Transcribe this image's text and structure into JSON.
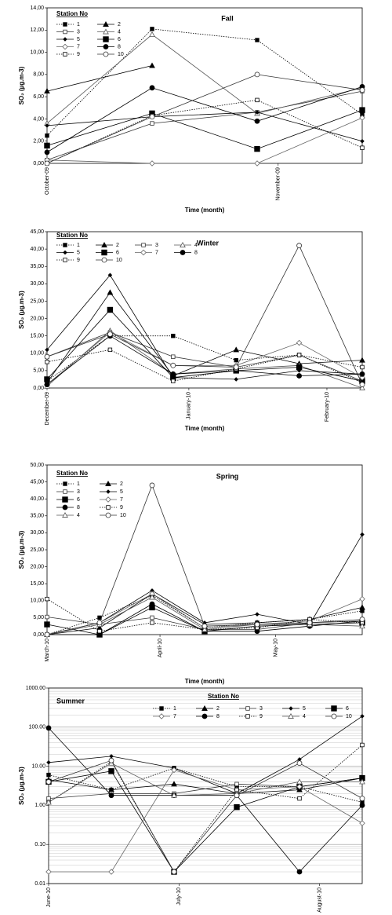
{
  "chart_data": [
    {
      "type": "line",
      "title": "Fall",
      "x_label": "Time (month)",
      "y_label": "SO₂ (µg.m-3)",
      "legend_title": "Station No",
      "x": [
        0,
        1,
        2,
        3
      ],
      "xlim": [
        0,
        3
      ],
      "xticks": [
        {
          "value": 0,
          "label": "October-09"
        },
        {
          "value": 2.2,
          "label": "November-09"
        }
      ],
      "ylim": [
        0,
        14
      ],
      "yticks": [
        {
          "value": 0,
          "label": "0,00"
        },
        {
          "value": 2,
          "label": "2,00"
        },
        {
          "value": 4,
          "label": "4,00"
        },
        {
          "value": 6,
          "label": "6,00"
        },
        {
          "value": 8,
          "label": "8,00"
        },
        {
          "value": 10,
          "label": "10,00"
        },
        {
          "value": 12,
          "label": "12,00"
        },
        {
          "value": 14,
          "label": "14,00"
        }
      ],
      "series": [
        {
          "name": "1",
          "color": "#000000",
          "marker": "square",
          "filled": true,
          "dashed": true,
          "values": [
            2.5,
            12.1,
            11.1,
            4.4
          ]
        },
        {
          "name": "2",
          "color": "#000000",
          "marker": "triangle",
          "filled": true,
          "dashed": false,
          "values": [
            6.5,
            8.8,
            null,
            null
          ]
        },
        {
          "name": "3",
          "color": "#333333",
          "marker": "square",
          "filled": false,
          "dashed": false,
          "values": [
            0.3,
            3.6,
            4.6,
            6.5
          ]
        },
        {
          "name": "4",
          "color": "#555555",
          "marker": "triangle",
          "filled": false,
          "dashed": false,
          "values": [
            3.6,
            11.6,
            4.5,
            6.8
          ]
        },
        {
          "name": "5",
          "color": "#000000",
          "marker": "small-diamond",
          "filled": true,
          "dashed": false,
          "values": [
            3.4,
            4.2,
            4.6,
            2.0
          ]
        },
        {
          "name": "6",
          "color": "#000000",
          "marker": "big-square",
          "filled": true,
          "dashed": false,
          "values": [
            1.6,
            4.5,
            1.3,
            4.8
          ]
        },
        {
          "name": "7",
          "color": "#666666",
          "marker": "diamond",
          "filled": false,
          "dashed": false,
          "values": [
            0.3,
            0.0,
            0.0,
            4.1
          ]
        },
        {
          "name": "8",
          "color": "#000000",
          "marker": "circle",
          "filled": true,
          "dashed": false,
          "values": [
            1.0,
            6.8,
            3.8,
            6.9
          ]
        },
        {
          "name": "9",
          "color": "#000000",
          "marker": "square",
          "filled": false,
          "dashed": true,
          "values": [
            0.0,
            4.3,
            5.7,
            1.4
          ]
        },
        {
          "name": "10",
          "color": "#333333",
          "marker": "circle",
          "filled": false,
          "dashed": false,
          "values": [
            0.0,
            4.2,
            8.0,
            6.6
          ]
        }
      ]
    },
    {
      "type": "line",
      "title": "Winter",
      "x_label": "Time (month)",
      "y_label": "SO₂ (µg.m-3)",
      "legend_title": "Station No",
      "x": [
        0,
        1,
        2,
        3,
        4,
        5
      ],
      "xlim": [
        0,
        5
      ],
      "xticks": [
        {
          "value": 0,
          "label": "December-09"
        },
        {
          "value": 2.25,
          "label": "January-10"
        },
        {
          "value": 4.44,
          "label": "February-10"
        }
      ],
      "ylim": [
        0,
        45
      ],
      "yticks": [
        {
          "value": 0,
          "label": "0,00"
        },
        {
          "value": 5,
          "label": "5,00"
        },
        {
          "value": 10,
          "label": "10,00"
        },
        {
          "value": 15,
          "label": "15,00"
        },
        {
          "value": 20,
          "label": "20,00"
        },
        {
          "value": 25,
          "label": "25,00"
        },
        {
          "value": 30,
          "label": "30,00"
        },
        {
          "value": 35,
          "label": "35,00"
        },
        {
          "value": 40,
          "label": "40,00"
        },
        {
          "value": 45,
          "label": "45,00"
        }
      ],
      "series": [
        {
          "name": "1",
          "color": "#000000",
          "marker": "square",
          "filled": true,
          "dashed": true,
          "values": [
            2.0,
            15.0,
            15.0,
            8.0,
            9.5,
            1.5
          ]
        },
        {
          "name": "2",
          "color": "#000000",
          "marker": "triangle",
          "filled": true,
          "dashed": false,
          "values": [
            1.5,
            27.5,
            3.5,
            11.0,
            7.0,
            8.0
          ]
        },
        {
          "name": "3",
          "color": "#333333",
          "marker": "square",
          "filled": false,
          "dashed": false,
          "values": [
            9.0,
            16.0,
            9.0,
            6.0,
            9.5,
            2.0
          ]
        },
        {
          "name": "4",
          "color": "#555555",
          "marker": "triangle",
          "filled": false,
          "dashed": false,
          "values": [
            0.5,
            16.5,
            4.0,
            5.5,
            6.5,
            0.0
          ]
        },
        {
          "name": "5",
          "color": "#000000",
          "marker": "small-diamond",
          "filled": true,
          "dashed": false,
          "values": [
            11.0,
            32.5,
            3.0,
            2.5,
            5.0,
            4.0
          ]
        },
        {
          "name": "6",
          "color": "#000000",
          "marker": "big-square",
          "filled": true,
          "dashed": false,
          "values": [
            2.5,
            22.5,
            3.0,
            5.0,
            6.0,
            2.0
          ]
        },
        {
          "name": "7",
          "color": "#666666",
          "marker": "diamond",
          "filled": false,
          "dashed": false,
          "values": [
            1.0,
            16.0,
            6.5,
            6.5,
            13.0,
            3.0
          ]
        },
        {
          "name": "8",
          "color": "#000000",
          "marker": "circle",
          "filled": true,
          "dashed": false,
          "values": [
            1.0,
            15.0,
            4.0,
            5.0,
            3.5,
            4.0
          ]
        },
        {
          "name": "9",
          "color": "#000000",
          "marker": "square",
          "filled": false,
          "dashed": true,
          "values": [
            7.5,
            11.0,
            2.0,
            5.5,
            9.5,
            6.0
          ]
        },
        {
          "name": "10",
          "color": "#333333",
          "marker": "circle",
          "filled": false,
          "dashed": false,
          "values": [
            9.0,
            15.5,
            6.5,
            6.0,
            41.0,
            1.0
          ]
        }
      ]
    },
    {
      "type": "line",
      "title": "Spring",
      "x_label": "Time (month)",
      "y_label": "SO₂ (µg.m-3)",
      "legend_title": "Station No",
      "x": [
        0,
        1,
        2,
        3,
        4,
        5,
        6
      ],
      "xlim": [
        0,
        6
      ],
      "xticks": [
        {
          "value": 0,
          "label": "March-10"
        },
        {
          "value": 2.15,
          "label": "April-10"
        },
        {
          "value": 4.35,
          "label": "May-10"
        }
      ],
      "ylim": [
        0,
        50
      ],
      "yticks": [
        {
          "value": 0,
          "label": "0,00"
        },
        {
          "value": 5,
          "label": "5,00"
        },
        {
          "value": 10,
          "label": "10,00"
        },
        {
          "value": 15,
          "label": "15,00"
        },
        {
          "value": 20,
          "label": "20,00"
        },
        {
          "value": 25,
          "label": "25,00"
        },
        {
          "value": 30,
          "label": "30,00"
        },
        {
          "value": 35,
          "label": "35,00"
        },
        {
          "value": 40,
          "label": "40,00"
        },
        {
          "value": 45,
          "label": "45,00"
        },
        {
          "value": 50,
          "label": "50,00"
        }
      ],
      "series": [
        {
          "name": "1",
          "color": "#000000",
          "marker": "square",
          "filled": true,
          "dashed": true,
          "values": [
            0.0,
            5.0,
            11.5,
            2.0,
            3.5,
            4.5,
            7.0
          ]
        },
        {
          "name": "2",
          "color": "#000000",
          "marker": "triangle",
          "filled": true,
          "dashed": false,
          "values": [
            0.0,
            2.0,
            12.0,
            3.0,
            3.5,
            4.5,
            8.0
          ]
        },
        {
          "name": "3",
          "color": "#333333",
          "marker": "square",
          "filled": false,
          "dashed": false,
          "values": [
            5.2,
            3.0,
            5.0,
            1.5,
            1.5,
            3.5,
            4.0
          ]
        },
        {
          "name": "5",
          "color": "#000000",
          "marker": "small-diamond",
          "filled": true,
          "dashed": false,
          "values": [
            0.0,
            3.5,
            13.0,
            3.5,
            6.0,
            3.0,
            29.5
          ]
        },
        {
          "name": "6",
          "color": "#000000",
          "marker": "big-square",
          "filled": true,
          "dashed": false,
          "values": [
            3.0,
            0.0,
            8.0,
            1.0,
            2.5,
            3.0,
            3.5
          ]
        },
        {
          "name": "7",
          "color": "#666666",
          "marker": "diamond",
          "filled": false,
          "dashed": false,
          "values": [
            0.0,
            3.5,
            12.0,
            2.0,
            3.0,
            4.0,
            10.5
          ]
        },
        {
          "name": "8",
          "color": "#000000",
          "marker": "circle",
          "filled": true,
          "dashed": false,
          "values": [
            0.0,
            0.0,
            9.0,
            1.0,
            1.0,
            2.5,
            4.0
          ]
        },
        {
          "name": "9",
          "color": "#000000",
          "marker": "square",
          "filled": false,
          "dashed": true,
          "values": [
            10.5,
            1.0,
            3.5,
            1.5,
            2.0,
            4.5,
            3.5
          ]
        },
        {
          "name": "4",
          "color": "#555555",
          "marker": "triangle",
          "filled": false,
          "dashed": false,
          "values": [
            0.0,
            3.0,
            11.0,
            1.5,
            3.0,
            3.0,
            2.5
          ]
        },
        {
          "name": "10",
          "color": "#333333",
          "marker": "circle",
          "filled": false,
          "dashed": false,
          "values": [
            0.0,
            3.5,
            44.0,
            2.5,
            3.0,
            3.5,
            4.5
          ]
        }
      ]
    },
    {
      "type": "line",
      "title": "Summer",
      "x_label": "Time (month)",
      "y_label": "SO₂ (µg.m-3)",
      "legend_title": "Station No",
      "x": [
        0,
        1,
        2,
        3,
        4,
        5
      ],
      "xlim": [
        0,
        5
      ],
      "xticks": [
        {
          "value": 0,
          "label": "June-10"
        },
        {
          "value": 2.08,
          "label": "July-10"
        },
        {
          "value": 4.32,
          "label": "August-10"
        }
      ],
      "ylim": [
        0.01,
        1000
      ],
      "log_scale": true,
      "grid": true,
      "yticks": [
        {
          "value": 0.01,
          "label": "0.01"
        },
        {
          "value": 0.1,
          "label": "0.10"
        },
        {
          "value": 1,
          "label": "1.00"
        },
        {
          "value": 10,
          "label": "10.00"
        },
        {
          "value": 100,
          "label": "100.00"
        },
        {
          "value": 1000,
          "label": "1000.00"
        }
      ],
      "series": [
        {
          "name": "1",
          "color": "#000000",
          "marker": "square",
          "filled": true,
          "dashed": true,
          "values": [
            6.0,
            2.5,
            9.0,
            3.0,
            3.0,
            1.2
          ]
        },
        {
          "name": "2",
          "color": "#000000",
          "marker": "triangle",
          "filled": true,
          "dashed": false,
          "values": [
            4.5,
            2.5,
            3.5,
            2.0,
            2.5,
            5.0
          ]
        },
        {
          "name": "3",
          "color": "#333333",
          "marker": "square",
          "filled": false,
          "dashed": false,
          "values": [
            1.5,
            2.0,
            2.0,
            3.5,
            3.0,
            5.0
          ]
        },
        {
          "name": "5",
          "color": "#000000",
          "marker": "small-diamond",
          "filled": true,
          "dashed": false,
          "values": [
            12.5,
            18.0,
            9.0,
            2.0,
            15.0,
            190
          ]
        },
        {
          "name": "6",
          "color": "#000000",
          "marker": "big-square",
          "filled": true,
          "dashed": false,
          "values": [
            4.0,
            7.5,
            0.02,
            0.9,
            3.0,
            5.0
          ]
        },
        {
          "name": "7",
          "color": "#666666",
          "marker": "diamond",
          "filled": false,
          "dashed": false,
          "values": [
            0.02,
            0.02,
            8.0,
            2.5,
            3.0,
            0.35
          ]
        },
        {
          "name": "8",
          "color": "#000000",
          "marker": "circle",
          "filled": true,
          "dashed": false,
          "values": [
            95,
            1.8,
            1.8,
            1.8,
            0.02,
            1.0
          ]
        },
        {
          "name": "9",
          "color": "#000000",
          "marker": "square",
          "filled": false,
          "dashed": true,
          "values": [
            1.2,
            13,
            0.02,
            2.5,
            1.5,
            35
          ]
        },
        {
          "name": "4",
          "color": "#555555",
          "marker": "triangle",
          "filled": false,
          "dashed": false,
          "values": [
            1.2,
            12,
            1.8,
            2.0,
            4.0,
            4.0
          ]
        },
        {
          "name": "10",
          "color": "#333333",
          "marker": "circle",
          "filled": false,
          "dashed": false,
          "values": [
            4.0,
            14,
            0.02,
            1.8,
            12,
            1.5
          ]
        }
      ]
    }
  ]
}
